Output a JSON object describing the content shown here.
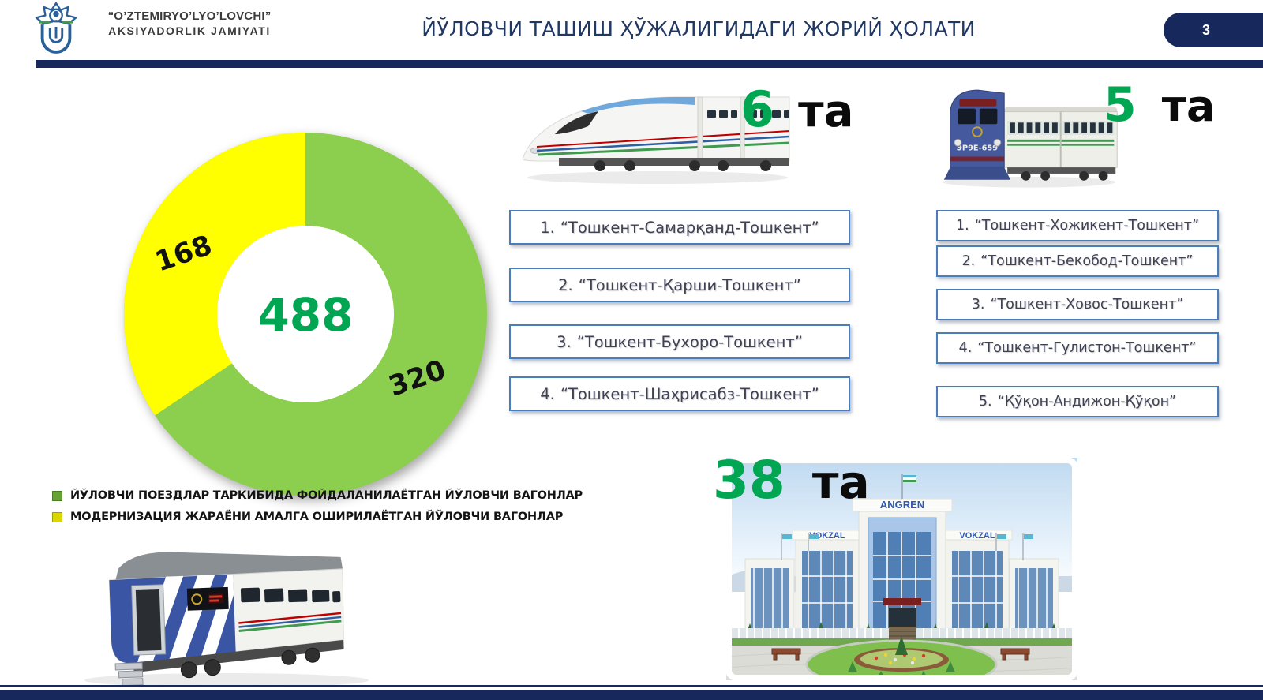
{
  "header": {
    "company_line1": "“O’ZTEMIRYO’LYO’LOVCHI”",
    "company_line2": "AKSIYADORLIK  JAMIYATI",
    "title": "ЙЎЛОВЧИ ТАШИШ ҲЎЖАЛИГИДАГИ ЖОРИЙ ҲОЛАТИ",
    "page_number": "3"
  },
  "chart_data": {
    "type": "pie",
    "donut": true,
    "start_angle_deg": 0,
    "direction": "clockwise",
    "center_label": "488",
    "segments": [
      {
        "label": "ЙЎЛОВЧИ ПОЕЗДЛАР ТАРКИБИДА ФОЙДАЛАНИЛАЁТГАН ЙЎЛОВЧИ ВАГОНЛАР",
        "value": 320,
        "color": "#8CCE4E"
      },
      {
        "label": "МОДЕРНИЗАЦИЯ ЖАРАЁНИ АМАЛГА ОШИРИЛАЁТГАН ЙЎЛОВЧИ ВАГОНЛАР",
        "value": 168,
        "color": "#FFFF00"
      }
    ],
    "slice_labels": [
      "320",
      "168"
    ],
    "legend_position": "bottom-left"
  },
  "legend": {
    "items": [
      {
        "swatch_color": "#66A334",
        "label": "ЙЎЛОВЧИ ПОЕЗДЛАР ТАРКИБИДА ФОЙДАЛАНИЛАЁТГАН ЙЎЛОВЧИ ВАГОНЛАР"
      },
      {
        "swatch_color": "#D9D600",
        "label": "МОДЕРНИЗАЦИЯ ЖАРАЁНИ АМАЛГА ОШИРИЛАЁТГАН ЙЎЛОВЧИ ВАГОНЛАР"
      }
    ]
  },
  "high_speed_trains": {
    "count": "6",
    "unit": "та",
    "routes": [
      {
        "num": "1.",
        "label": "“Тошкент-Самарқанд-Тошкент”"
      },
      {
        "num": "2.",
        "label": "“Тошкент-Қарши-Тошкент”"
      },
      {
        "num": "3.",
        "label": "“Тошкент-Бухоро-Тошкент”"
      },
      {
        "num": "4.",
        "label": "“Тошкент-Шаҳрисабз-Тошкент”"
      }
    ]
  },
  "local_trains": {
    "count": "5",
    "unit": "та",
    "train_model": "ЭР9Е-659",
    "routes": [
      {
        "num": "1.",
        "label": "“Тошкент-Хожикент-Тошкент”"
      },
      {
        "num": "2.",
        "label": "“Тошкент-Бекобод-Тошкент”"
      },
      {
        "num": "3.",
        "label": "“Тошкент-Ховос-Тошкент”"
      },
      {
        "num": "4.",
        "label": "“Тошкент-Гулистон-Тошкент”"
      },
      {
        "num": "5.",
        "label": "“Қўқон-Андижон-Қўқон”"
      }
    ]
  },
  "stations": {
    "count": "38",
    "unit": "та",
    "photo": {
      "name_sign": "ANGREN",
      "left_sign": "VOKZAL",
      "right_sign": "VOKZAL"
    }
  },
  "colors": {
    "navy": "#17295C",
    "title_navy": "#1F3864",
    "green_number": "#00A651",
    "chart_green": "#8CCE4E",
    "chart_yellow": "#FFFF00",
    "box_border": "#4A7EBB"
  }
}
